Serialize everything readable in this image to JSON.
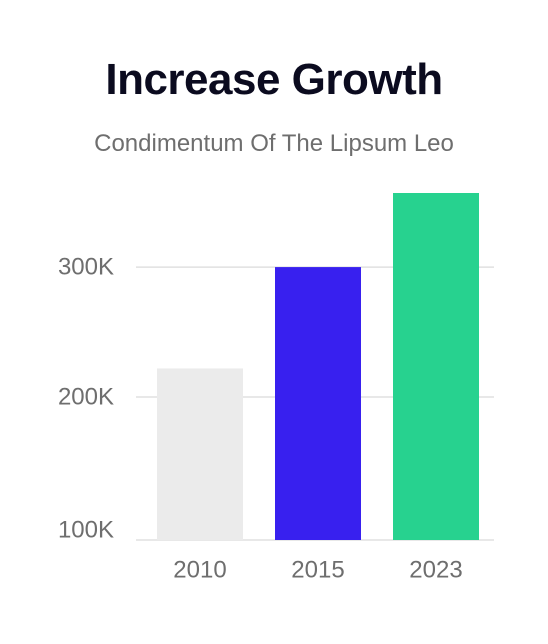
{
  "chart_data": {
    "type": "bar",
    "title": "Increase Growth",
    "subtitle": "Condimentum Of The Lipsum Leo",
    "xlabel": "",
    "ylabel": "",
    "categories": [
      "2010",
      "2015",
      "2023"
    ],
    "values": [
      222000,
      300000,
      357000
    ],
    "bar_colors": [
      "#ebebeb",
      "#3820ef",
      "#27d28f"
    ],
    "ylim": [
      90000,
      357000
    ],
    "yticks": [
      100000,
      200000,
      300000
    ],
    "ytick_labels": [
      "100K",
      "200K",
      "300K"
    ],
    "grid": true,
    "grid_color": "#e0e0e0",
    "legend": "none"
  }
}
